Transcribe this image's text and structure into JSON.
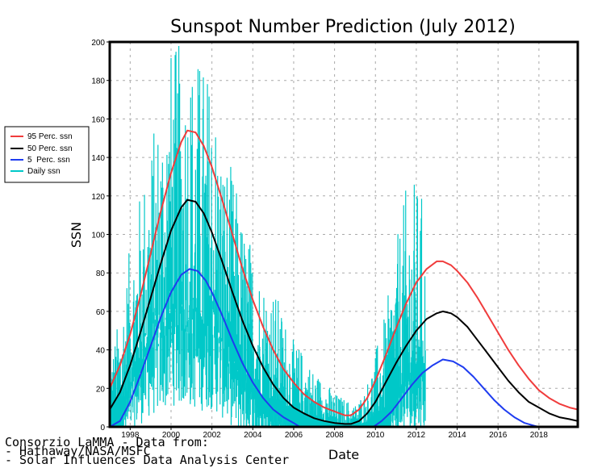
{
  "chart_data": {
    "type": "line",
    "title": "Sunspot Number Prediction (July 2012)",
    "xlabel": "Date",
    "ylabel": "SSN",
    "xlim": [
      1997.0,
      2019.9
    ],
    "ylim": [
      0,
      200
    ],
    "grid": true,
    "legend_position": "left",
    "x_ticks": [
      1998,
      2000,
      2002,
      2004,
      2006,
      2008,
      2010,
      2012,
      2014,
      2016,
      2018
    ],
    "x_tick_labels": [
      "1998",
      "2000",
      "2002",
      "2004",
      "2006",
      "2008",
      "2010",
      "2012",
      "2014",
      "2016",
      "2018"
    ],
    "y_ticks": [
      0,
      20,
      40,
      60,
      80,
      100,
      120,
      140,
      160,
      180,
      200
    ],
    "y_tick_labels": [
      "0",
      "20",
      "40",
      "60",
      "80",
      "100",
      "120",
      "140",
      "160",
      "180",
      "200"
    ],
    "series": [
      {
        "name": "95 Perc. ssn",
        "color": "#f03c3c",
        "x": [
          1997.0,
          1997.5,
          1998.0,
          1998.5,
          1999.0,
          1999.5,
          2000.0,
          2000.5,
          2000.8,
          2001.2,
          2001.6,
          2002.0,
          2002.5,
          2003.0,
          2003.5,
          2004.0,
          2004.5,
          2005.0,
          2005.5,
          2006.0,
          2006.5,
          2007.0,
          2007.5,
          2008.0,
          2008.5,
          2008.8,
          2009.2,
          2009.6,
          2010.0,
          2010.5,
          2011.0,
          2011.5,
          2012.0,
          2012.5,
          2013.0,
          2013.3,
          2013.7,
          2014.0,
          2014.5,
          2015.0,
          2015.5,
          2016.0,
          2016.5,
          2017.0,
          2017.5,
          2018.0,
          2018.5,
          2019.0,
          2019.5,
          2019.9
        ],
        "values": [
          20,
          32,
          48,
          68,
          90,
          112,
          132,
          148,
          154,
          153,
          146,
          135,
          118,
          100,
          82,
          66,
          52,
          40,
          30,
          23,
          17,
          13,
          10,
          8,
          6,
          6,
          9,
          15,
          24,
          37,
          51,
          64,
          75,
          82,
          86,
          86,
          84,
          81,
          75,
          67,
          58,
          49,
          40,
          32,
          25,
          19,
          15,
          12,
          10,
          9
        ]
      },
      {
        "name": "50 Perc. ssn",
        "color": "#000000",
        "x": [
          1997.0,
          1997.5,
          1998.0,
          1998.5,
          1999.0,
          1999.5,
          2000.0,
          2000.5,
          2000.8,
          2001.2,
          2001.6,
          2002.0,
          2002.5,
          2003.0,
          2003.5,
          2004.0,
          2004.5,
          2005.0,
          2005.5,
          2006.0,
          2006.5,
          2007.0,
          2007.5,
          2008.0,
          2008.5,
          2008.8,
          2009.2,
          2009.6,
          2010.0,
          2010.5,
          2011.0,
          2011.5,
          2012.0,
          2012.5,
          2013.0,
          2013.3,
          2013.7,
          2014.0,
          2014.5,
          2015.0,
          2015.5,
          2016.0,
          2016.5,
          2017.0,
          2017.5,
          2018.0,
          2018.5,
          2019.0,
          2019.5,
          2019.9
        ],
        "values": [
          9,
          18,
          32,
          49,
          67,
          85,
          102,
          114,
          118,
          117,
          111,
          101,
          86,
          70,
          55,
          42,
          31,
          22,
          15,
          10,
          7,
          4.5,
          3,
          2,
          1.5,
          1.5,
          3,
          7,
          13,
          23,
          33,
          42,
          50,
          56,
          59,
          60,
          59,
          57,
          52,
          45,
          38,
          31,
          24,
          18,
          13,
          10,
          7,
          5,
          4,
          3
        ]
      },
      {
        "name": "5  Perc. ssn",
        "color": "#1e3cf0",
        "x": [
          1997.0,
          1997.5,
          1998.0,
          1998.5,
          1999.0,
          1999.5,
          2000.0,
          2000.5,
          2000.9,
          2001.3,
          2001.7,
          2002.0,
          2002.5,
          2003.0,
          2003.5,
          2004.0,
          2004.5,
          2005.0,
          2005.5,
          2006.0,
          2006.3,
          2009.9,
          2010.3,
          2010.8,
          2011.3,
          2011.8,
          2012.3,
          2012.8,
          2013.3,
          2013.8,
          2014.3,
          2014.8,
          2015.3,
          2015.8,
          2016.3,
          2016.8,
          2017.3,
          2017.8,
          2018.0,
          2019.9
        ],
        "values": [
          0,
          3,
          13,
          27,
          42,
          57,
          70,
          79,
          82,
          81,
          76,
          70,
          58,
          45,
          33,
          23,
          15,
          9,
          5,
          2,
          0,
          0,
          3,
          8,
          15,
          22,
          28,
          32,
          35,
          34,
          31,
          26,
          20,
          14,
          9,
          5,
          2,
          0.5,
          0,
          0
        ]
      },
      {
        "name": "Daily ssn",
        "color": "#00c8c8",
        "style": "vertical bars (noisy daily values)",
        "x": [
          1997.0,
          1997.5,
          1998.0,
          1998.5,
          1999.0,
          1999.5,
          2000.0,
          2000.5,
          2001.0,
          2001.5,
          2002.0,
          2002.5,
          2003.0,
          2003.5,
          2004.0,
          2004.5,
          2005.0,
          2005.5,
          2006.0,
          2006.5,
          2007.0,
          2007.5,
          2008.0,
          2008.5,
          2009.0,
          2009.5,
          2010.0,
          2010.5,
          2011.0,
          2011.5,
          2012.0,
          2012.5
        ],
        "values": [
          15,
          25,
          55,
          80,
          100,
          110,
          130,
          125,
          120,
          115,
          120,
          95,
          75,
          60,
          50,
          40,
          35,
          28,
          20,
          15,
          12,
          8,
          5,
          3,
          2,
          5,
          15,
          25,
          45,
          60,
          65,
          70
        ],
        "peak_values": [
          35,
          60,
          95,
          125,
          150,
          175,
          200,
          200,
          200,
          195,
          185,
          150,
          135,
          110,
          95,
          80,
          75,
          60,
          45,
          40,
          30,
          25,
          18,
          15,
          12,
          20,
          40,
          60,
          95,
          125,
          130,
          115
        ]
      }
    ]
  },
  "legend": {
    "items": [
      {
        "label": "95 Perc. ssn",
        "color": "#f03c3c"
      },
      {
        "label": "50 Perc. ssn",
        "color": "#000000"
      },
      {
        "label": "5  Perc. ssn",
        "color": "#1e3cf0"
      },
      {
        "label": "Daily ssn",
        "color": "#00c8c8"
      }
    ]
  },
  "credits": {
    "line1": "Consorzio LaMMA - Data from:",
    "line2": "- Hathaway/NASA/MSFC",
    "line3": "- Solar Influences Data Analysis Center"
  }
}
